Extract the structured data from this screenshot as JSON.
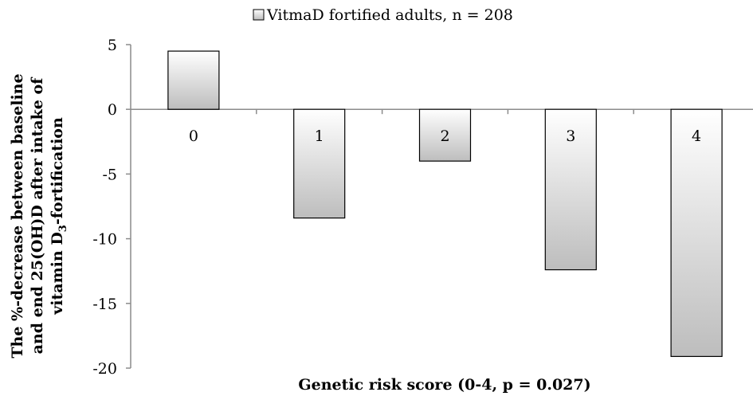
{
  "chart_data": {
    "type": "bar",
    "categories": [
      "0",
      "1",
      "2",
      "3",
      "4"
    ],
    "series": [
      {
        "name": "VitmaD fortified adults, n = 208",
        "values": [
          4.5,
          -8.4,
          -4.0,
          -12.4,
          -19.1
        ]
      }
    ],
    "xlabel": "Genetic risk score (0-4, p = 0.027)",
    "ylabel_lines": [
      "The %-decrease between baseline",
      "and end  25(OH)D after intake of",
      "vitamin D"
    ],
    "ylabel_subscript": "3",
    "ylabel_suffix": "-fortification",
    "ylim": [
      -20,
      5
    ],
    "yticks": [
      5,
      0,
      -5,
      -10,
      -15,
      -20
    ],
    "legend_position": "top",
    "grid": false,
    "colors": {
      "bar_top": "#ffffff",
      "bar_bottom": "#bdbdbd",
      "bar_stroke": "#000000",
      "axis": "#8c8c8c"
    }
  }
}
